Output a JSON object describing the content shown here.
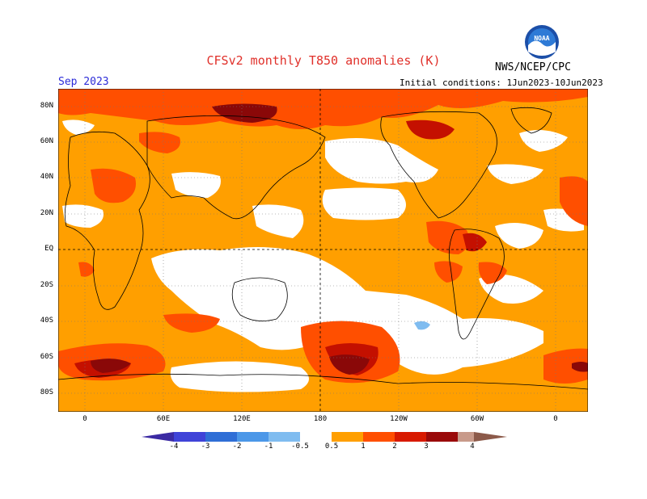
{
  "title": "CFSv2 monthly T850 anomalies (K)",
  "agency": "NWS/NCEP/CPC",
  "logo_text": "NOAA",
  "valid_month": "Sep 2023",
  "initial_conditions": "Initial conditions: 1Jun2023-10Jun2023",
  "lat_labels": [
    "80N",
    "60N",
    "40N",
    "20N",
    "EQ",
    "20S",
    "40S",
    "60S",
    "80S"
  ],
  "lon_labels": [
    "0",
    "60E",
    "120E",
    "180",
    "120W",
    "60W",
    "0"
  ],
  "colorbar": {
    "ticks": [
      "-4",
      "-3",
      "-2",
      "-1",
      "-0.5",
      "0.5",
      "1",
      "2",
      "3",
      "4"
    ],
    "colors": [
      "#3b2aa3",
      "#3f43d8",
      "#2f6ed6",
      "#4b97e8",
      "#7fbcf0",
      "#ffffff",
      "#ff9f00",
      "#ff4f00",
      "#d81a00",
      "#9a0a0a",
      "#c89a8a",
      "#8c5a4a"
    ]
  },
  "map_colors": {
    "ocean_land_base": "#ff9f00",
    "neutral": "#ffffff",
    "warm1": "#ff4f00",
    "warm2": "#c41000",
    "warm3": "#8a0808",
    "cool": "#7fbcf0"
  }
}
